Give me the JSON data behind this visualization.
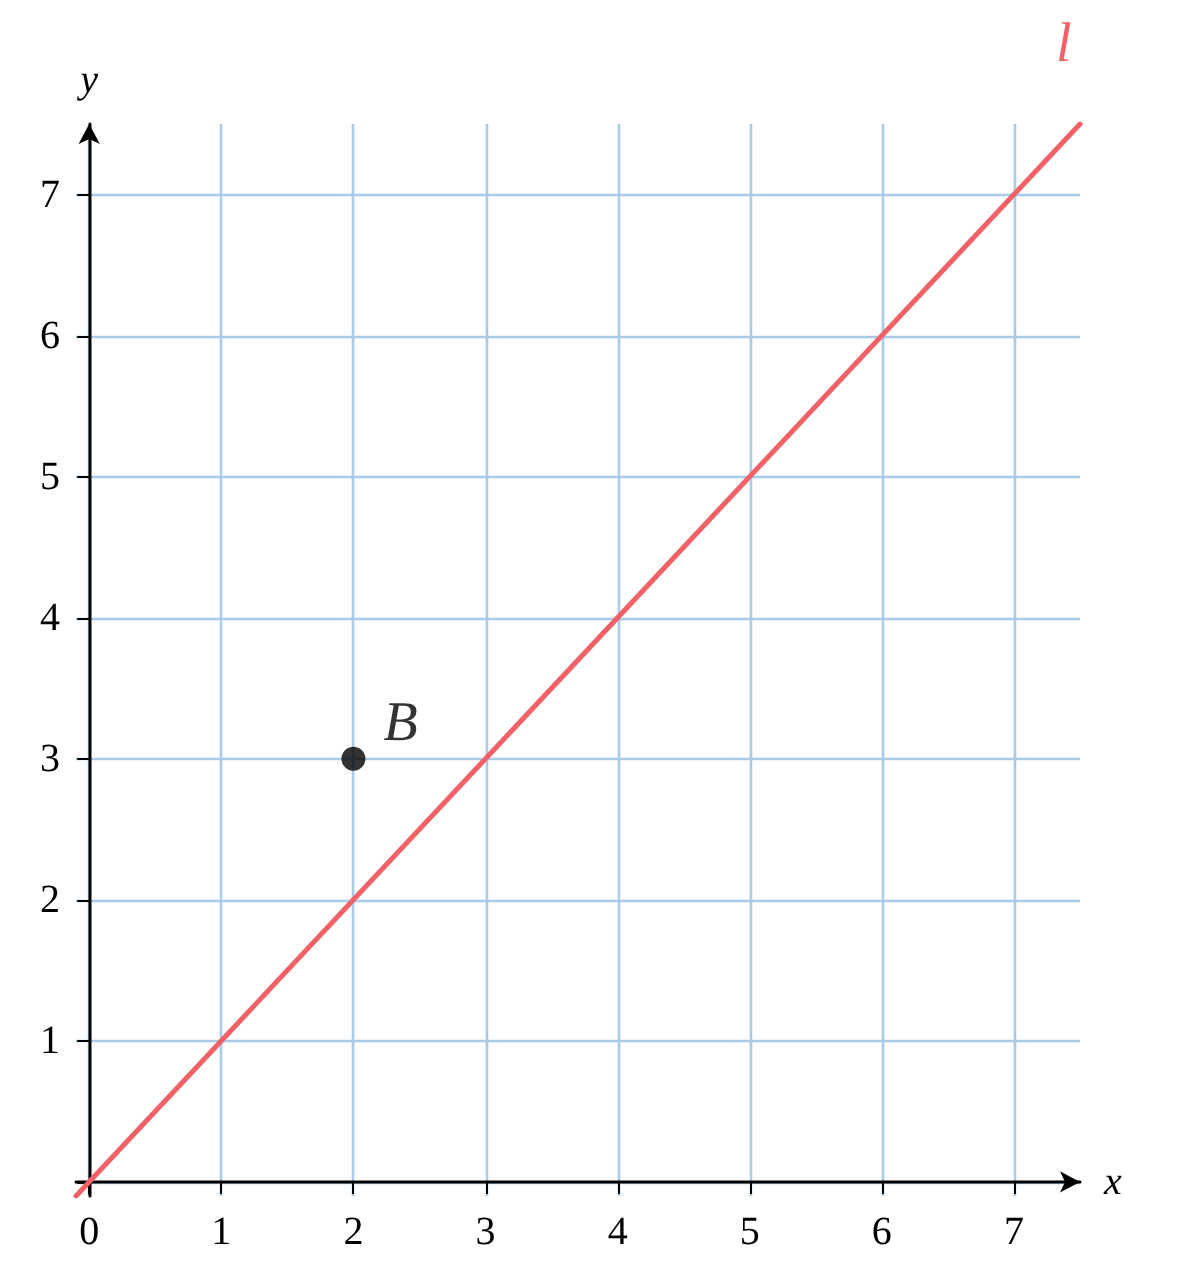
{
  "chart_data": {
    "type": "line",
    "xlabel": "x",
    "ylabel": "y",
    "xlim": [
      -0.1,
      7.5
    ],
    "ylim": [
      -0.1,
      7.5
    ],
    "xticks": [
      0,
      1,
      2,
      3,
      4,
      5,
      6,
      7
    ],
    "yticks": [
      {
        "value": 0,
        "label": null
      },
      1,
      2,
      3,
      4,
      5,
      6,
      7
    ],
    "grid": true,
    "series": [
      {
        "name": "l⃡",
        "color": "#f26168",
        "marker": "none",
        "x": [
          -0.1,
          7.5
        ],
        "values": [
          -0.1,
          7.5
        ]
      },
      {
        "name": "B",
        "type": "scatter",
        "color": "#000000",
        "marker": "circle",
        "x": [
          2
        ],
        "values": [
          3
        ]
      }
    ]
  }
}
